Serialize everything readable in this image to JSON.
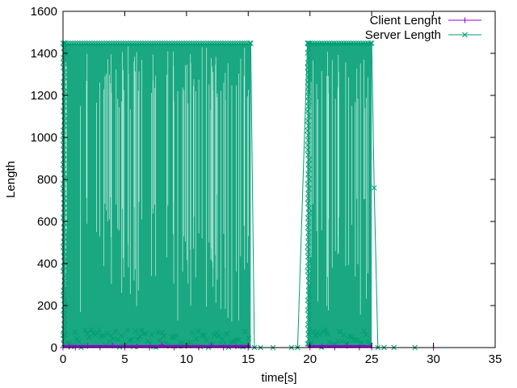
{
  "chart_data": {
    "type": "line",
    "title": "",
    "xlabel": "time[s]",
    "ylabel": "Length",
    "xlim": [
      0,
      35
    ],
    "ylim": [
      0,
      1600
    ],
    "xticks": [
      0,
      5,
      10,
      15,
      20,
      25,
      30,
      35
    ],
    "yticks": [
      0,
      200,
      400,
      600,
      800,
      1000,
      1200,
      1400,
      1600
    ],
    "grid": false,
    "legend_position": "top-right",
    "series": [
      {
        "name": "Client Lenght",
        "color": "#9400d3",
        "marker": "plus",
        "points": [
          [
            0.0,
            0
          ],
          [
            0.5,
            5
          ],
          [
            1.0,
            0
          ],
          [
            2.0,
            8
          ],
          [
            3.0,
            0
          ],
          [
            4.0,
            10
          ],
          [
            5.0,
            0
          ],
          [
            6.0,
            6
          ],
          [
            7.0,
            0
          ],
          [
            8.0,
            12
          ],
          [
            9.0,
            0
          ],
          [
            10.0,
            8
          ],
          [
            11.0,
            0
          ],
          [
            12.0,
            10
          ],
          [
            13.0,
            0
          ],
          [
            14.0,
            6
          ],
          [
            15.0,
            0
          ],
          [
            20.0,
            0
          ],
          [
            21.0,
            6
          ],
          [
            22.0,
            0
          ],
          [
            23.0,
            8
          ],
          [
            24.0,
            0
          ],
          [
            25.0,
            0
          ],
          [
            30.0,
            0
          ]
        ]
      },
      {
        "name": "Server Length",
        "color": "#009e73",
        "marker": "cross",
        "dense_bursts": [
          {
            "x_start": 0.0,
            "x_end": 15.2,
            "y_min": 0,
            "y_max": 1448
          },
          {
            "x_start": 19.8,
            "x_end": 25.0,
            "y_min": 0,
            "y_max": 1448
          }
        ],
        "points": [
          [
            15.2,
            1448
          ],
          [
            15.5,
            0
          ],
          [
            16.0,
            0
          ],
          [
            17.0,
            0
          ],
          [
            18.5,
            0
          ],
          [
            19.0,
            0
          ],
          [
            19.8,
            1448
          ],
          [
            25.0,
            1448
          ],
          [
            25.2,
            760
          ],
          [
            25.5,
            0
          ],
          [
            26.0,
            0
          ],
          [
            26.8,
            0
          ],
          [
            28.5,
            0
          ]
        ]
      }
    ]
  }
}
